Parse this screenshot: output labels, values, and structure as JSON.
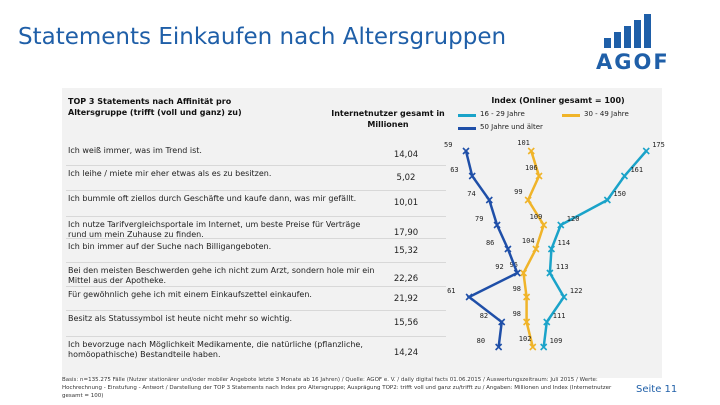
{
  "title": "Statements Einkaufen nach Altersgruppen",
  "logo": {
    "text": "AGOF",
    "bars": [
      2,
      3,
      4,
      5,
      6
    ]
  },
  "header": {
    "left": "TOP 3 Statements nach Affinität pro Altersgruppe (trifft (voll und ganz) zu)",
    "middle": "Internetnutzer gesamt in Millionen",
    "index": "Index (Onliner gesamt = 100)"
  },
  "legend": [
    {
      "label": "16 - 29 Jahre",
      "color": "#1aa3c9"
    },
    {
      "label": "30 - 49 Jahre",
      "color": "#f0b429"
    },
    {
      "label": "50 Jahre und älter",
      "color": "#1f4fa8"
    }
  ],
  "chart_data": {
    "type": "line",
    "title": "Index (Onliner gesamt = 100)",
    "categories": [
      "Ich weiß immer, was im Trend ist.",
      "Ich leihe / miete mir eher etwas als es zu besitzen.",
      "Ich bummle oft ziellos durch Geschäfte und kaufe dann, was mir gefällt.",
      "Ich nutze Tarifvergleichsportale im Internet, um beste Preise für Verträge rund um mein Zuhause zu finden.",
      "Ich bin immer auf der Suche nach Billigangeboten.",
      "Bei den meisten Beschwerden gehe ich nicht zum Arzt, sondern hole mir ein Mittel aus der Apotheke.",
      "Für gewöhnlich gehe ich mit einem Einkaufszettel einkaufen.",
      "Besitz als Statussymbol ist heute nicht mehr so wichtig.",
      "Ich bevorzuge nach Möglichkeit Medikamente, die natürliche (pflanzliche, homöopathische) Bestandteile haben."
    ],
    "internetnutzer_mio": [
      "14,04",
      "5,02",
      "10,01",
      "17,90",
      "15,32",
      "22,26",
      "21,92",
      "15,56",
      "14,24"
    ],
    "series": [
      {
        "name": "16 - 29 Jahre",
        "values": [
          175,
          161,
          150,
          120,
          114,
          113,
          122,
          111,
          109
        ]
      },
      {
        "name": "30 - 49 Jahre",
        "values": [
          101,
          106,
          99,
          109,
          104,
          96,
          98,
          98,
          102
        ]
      },
      {
        "name": "50 Jahre und älter",
        "values": [
          59,
          63,
          74,
          79,
          86,
          92,
          61,
          82,
          80
        ]
      }
    ],
    "xlim": [
      50,
      180
    ]
  },
  "footnote": "Basis: n=135.275 Fälle (Nutzer stationärer und/oder mobiler Angebote letzte 3 Monate ab 16 Jahren) / Quelle: AGOF e. V. / daily digital facts 01.06.2015 / Auswertungszeitraum: Juli 2015 / Werte: Hochrechnung - Einstufung - Antwort / Darstellung der TOP 3 Statements nach Index pro Altersgruppe; Ausprägung TOP2: trifft voll und ganz zu/trifft zu / Angaben: Millionen und Index (Internetnutzer gesamt = 100)",
  "page_number": "Seite 11"
}
